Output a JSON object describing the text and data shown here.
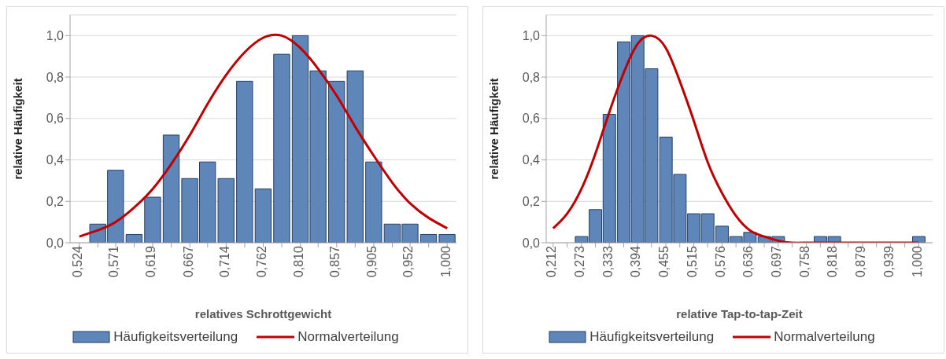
{
  "chart_data": [
    {
      "type": "bar",
      "xlabel": "relatives Schrottgewicht",
      "ylabel": "relative Häufigkeit",
      "xlim": [
        0.512,
        1.012
      ],
      "ylim": [
        0,
        1.1
      ],
      "xticks": [
        {
          "value": 0.524,
          "label": "0,524"
        },
        {
          "value": 0.548,
          "label": null
        },
        {
          "value": 0.571,
          "label": "0,571"
        },
        {
          "value": 0.595,
          "label": null
        },
        {
          "value": 0.619,
          "label": "0,619"
        },
        {
          "value": 0.643,
          "label": null
        },
        {
          "value": 0.667,
          "label": "0,667"
        },
        {
          "value": 0.69,
          "label": null
        },
        {
          "value": 0.714,
          "label": "0,714"
        },
        {
          "value": 0.738,
          "label": null
        },
        {
          "value": 0.762,
          "label": "0,762"
        },
        {
          "value": 0.786,
          "label": null
        },
        {
          "value": 0.81,
          "label": "0,810"
        },
        {
          "value": 0.833,
          "label": null
        },
        {
          "value": 0.857,
          "label": "0,857"
        },
        {
          "value": 0.881,
          "label": null
        },
        {
          "value": 0.905,
          "label": "0,905"
        },
        {
          "value": 0.929,
          "label": null
        },
        {
          "value": 0.952,
          "label": "0,952"
        },
        {
          "value": 0.976,
          "label": null
        },
        {
          "value": 1.0,
          "label": "1,000"
        }
      ],
      "yticks": [
        {
          "value": 0,
          "label": "0,0"
        },
        {
          "value": 0.2,
          "label": "0,2"
        },
        {
          "value": 0.4,
          "label": "0,4"
        },
        {
          "value": 0.6,
          "label": "0,6"
        },
        {
          "value": 0.8,
          "label": "0,8"
        },
        {
          "value": 1.0,
          "label": "1,0"
        }
      ],
      "grid": "y",
      "legend": "bottom",
      "series": [
        {
          "name": "Häufigkeitsverteilung",
          "color": "#5f86b8",
          "x": [
            0.548,
            0.571,
            0.595,
            0.619,
            0.643,
            0.667,
            0.69,
            0.714,
            0.738,
            0.762,
            0.786,
            0.81,
            0.833,
            0.857,
            0.881,
            0.905,
            0.929,
            0.952,
            0.976,
            1.0
          ],
          "values": [
            0.09,
            0.35,
            0.04,
            0.22,
            0.52,
            0.31,
            0.39,
            0.31,
            0.78,
            0.26,
            0.91,
            1.0,
            0.83,
            0.78,
            0.83,
            0.39,
            0.09,
            0.09,
            0.04,
            0.04
          ]
        },
        {
          "name": "Normalverteilung",
          "type": "line",
          "color": "#c00000",
          "x": [
            0.524,
            0.548,
            0.571,
            0.595,
            0.619,
            0.643,
            0.667,
            0.69,
            0.714,
            0.738,
            0.762,
            0.786,
            0.81,
            0.833,
            0.857,
            0.881,
            0.905,
            0.929,
            0.952,
            0.976,
            1.0
          ],
          "values": [
            0.03,
            0.06,
            0.1,
            0.17,
            0.26,
            0.38,
            0.52,
            0.67,
            0.81,
            0.92,
            0.99,
            1.0,
            0.94,
            0.84,
            0.71,
            0.56,
            0.42,
            0.29,
            0.19,
            0.12,
            0.07
          ]
        }
      ]
    },
    {
      "type": "bar",
      "xlabel": "relative Tap-to-tap-Zeit",
      "ylabel": "relative Häufigkeit",
      "xlim": [
        0.197,
        1.03
      ],
      "ylim": [
        0,
        1.1
      ],
      "xticks": [
        {
          "value": 0.212,
          "label": "0,212"
        },
        {
          "value": 0.242,
          "label": null
        },
        {
          "value": 0.273,
          "label": "0,273"
        },
        {
          "value": 0.303,
          "label": null
        },
        {
          "value": 0.333,
          "label": "0,333"
        },
        {
          "value": 0.364,
          "label": null
        },
        {
          "value": 0.394,
          "label": "0,394"
        },
        {
          "value": 0.424,
          "label": null
        },
        {
          "value": 0.455,
          "label": "0,455"
        },
        {
          "value": 0.485,
          "label": null
        },
        {
          "value": 0.515,
          "label": "0,515"
        },
        {
          "value": 0.545,
          "label": null
        },
        {
          "value": 0.576,
          "label": "0,576"
        },
        {
          "value": 0.606,
          "label": null
        },
        {
          "value": 0.636,
          "label": "0,636"
        },
        {
          "value": 0.667,
          "label": null
        },
        {
          "value": 0.697,
          "label": "0,697"
        },
        {
          "value": 0.727,
          "label": null
        },
        {
          "value": 0.758,
          "label": "0,758"
        },
        {
          "value": 0.788,
          "label": null
        },
        {
          "value": 0.818,
          "label": "0,818"
        },
        {
          "value": 0.848,
          "label": null
        },
        {
          "value": 0.879,
          "label": "0,879"
        },
        {
          "value": 0.909,
          "label": null
        },
        {
          "value": 0.939,
          "label": "0,939"
        },
        {
          "value": 0.97,
          "label": null
        },
        {
          "value": 1.0,
          "label": "1,000"
        }
      ],
      "yticks": [
        {
          "value": 0,
          "label": "0,0"
        },
        {
          "value": 0.2,
          "label": "0,2"
        },
        {
          "value": 0.4,
          "label": "0,4"
        },
        {
          "value": 0.6,
          "label": "0,6"
        },
        {
          "value": 0.8,
          "label": "0,8"
        },
        {
          "value": 1.0,
          "label": "1,0"
        }
      ],
      "grid": "y",
      "legend": "bottom",
      "series": [
        {
          "name": "Häufigkeitsverteilung",
          "color": "#5f86b8",
          "x": [
            0.273,
            0.303,
            0.333,
            0.364,
            0.394,
            0.424,
            0.455,
            0.485,
            0.515,
            0.545,
            0.576,
            0.606,
            0.636,
            0.667,
            0.697,
            0.788,
            0.818,
            1.0
          ],
          "values": [
            0.03,
            0.16,
            0.62,
            0.97,
            1.0,
            0.84,
            0.51,
            0.33,
            0.14,
            0.14,
            0.08,
            0.03,
            0.05,
            0.03,
            0.03,
            0.03,
            0.03,
            0.03
          ]
        },
        {
          "name": "Normalverteilung",
          "type": "line",
          "color": "#c00000",
          "x": [
            0.212,
            0.242,
            0.273,
            0.303,
            0.333,
            0.364,
            0.394,
            0.424,
            0.455,
            0.485,
            0.515,
            0.545,
            0.576,
            0.606,
            0.636,
            0.667,
            0.697,
            0.727,
            0.758,
            0.788,
            0.818,
            0.848,
            0.879,
            0.909,
            0.939,
            0.97,
            1.0
          ],
          "values": [
            0.07,
            0.14,
            0.26,
            0.43,
            0.63,
            0.82,
            0.96,
            1.0,
            0.94,
            0.78,
            0.59,
            0.39,
            0.24,
            0.13,
            0.06,
            0.03,
            0.01,
            0,
            0,
            0,
            0,
            0,
            0,
            0,
            0,
            0,
            0
          ]
        }
      ]
    }
  ]
}
